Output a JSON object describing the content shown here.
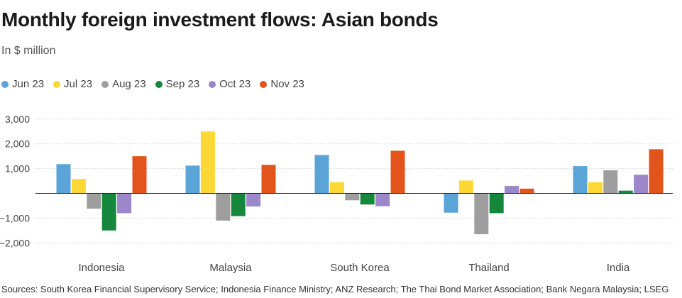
{
  "chart_data": {
    "type": "bar",
    "title": "Monthly foreign investment flows: Asian bonds",
    "subtitle": "In $ million",
    "categories": [
      "Indonesia",
      "Malaysia",
      "South Korea",
      "Thailand",
      "India"
    ],
    "series": [
      {
        "name": "Jun 23",
        "color": "#5aa4d8",
        "values": [
          1180,
          1120,
          1550,
          -780,
          1100
        ]
      },
      {
        "name": "Jul 23",
        "color": "#fdd835",
        "values": [
          580,
          2500,
          450,
          520,
          450
        ]
      },
      {
        "name": "Aug 23",
        "color": "#9e9e9e",
        "values": [
          -620,
          -1100,
          -280,
          -1650,
          930
        ]
      },
      {
        "name": "Sep 23",
        "color": "#16883d",
        "values": [
          -1500,
          -920,
          -450,
          -800,
          110
        ]
      },
      {
        "name": "Oct 23",
        "color": "#9b87c9",
        "values": [
          -800,
          -530,
          -520,
          300,
          750
        ]
      },
      {
        "name": "Nov 23",
        "color": "#e2541b",
        "values": [
          1500,
          1150,
          1720,
          190,
          1780
        ]
      }
    ],
    "yticks": [
      3000,
      2000,
      1000,
      -1000,
      -2000
    ],
    "ytick_labels": [
      "3,000",
      "2,000",
      "1,000",
      "−1,000",
      "−2,000"
    ],
    "ylim": [
      -2000,
      3000
    ],
    "xlabel": "",
    "ylabel": "",
    "grid": true,
    "legend_position": "top-left"
  },
  "source": "Sources: South Korea Financial Supervisory Service; Indonesia Finance Ministry; ANZ Research; The Thai Bond Market Association; Bank Negara Malaysia; LSEG"
}
